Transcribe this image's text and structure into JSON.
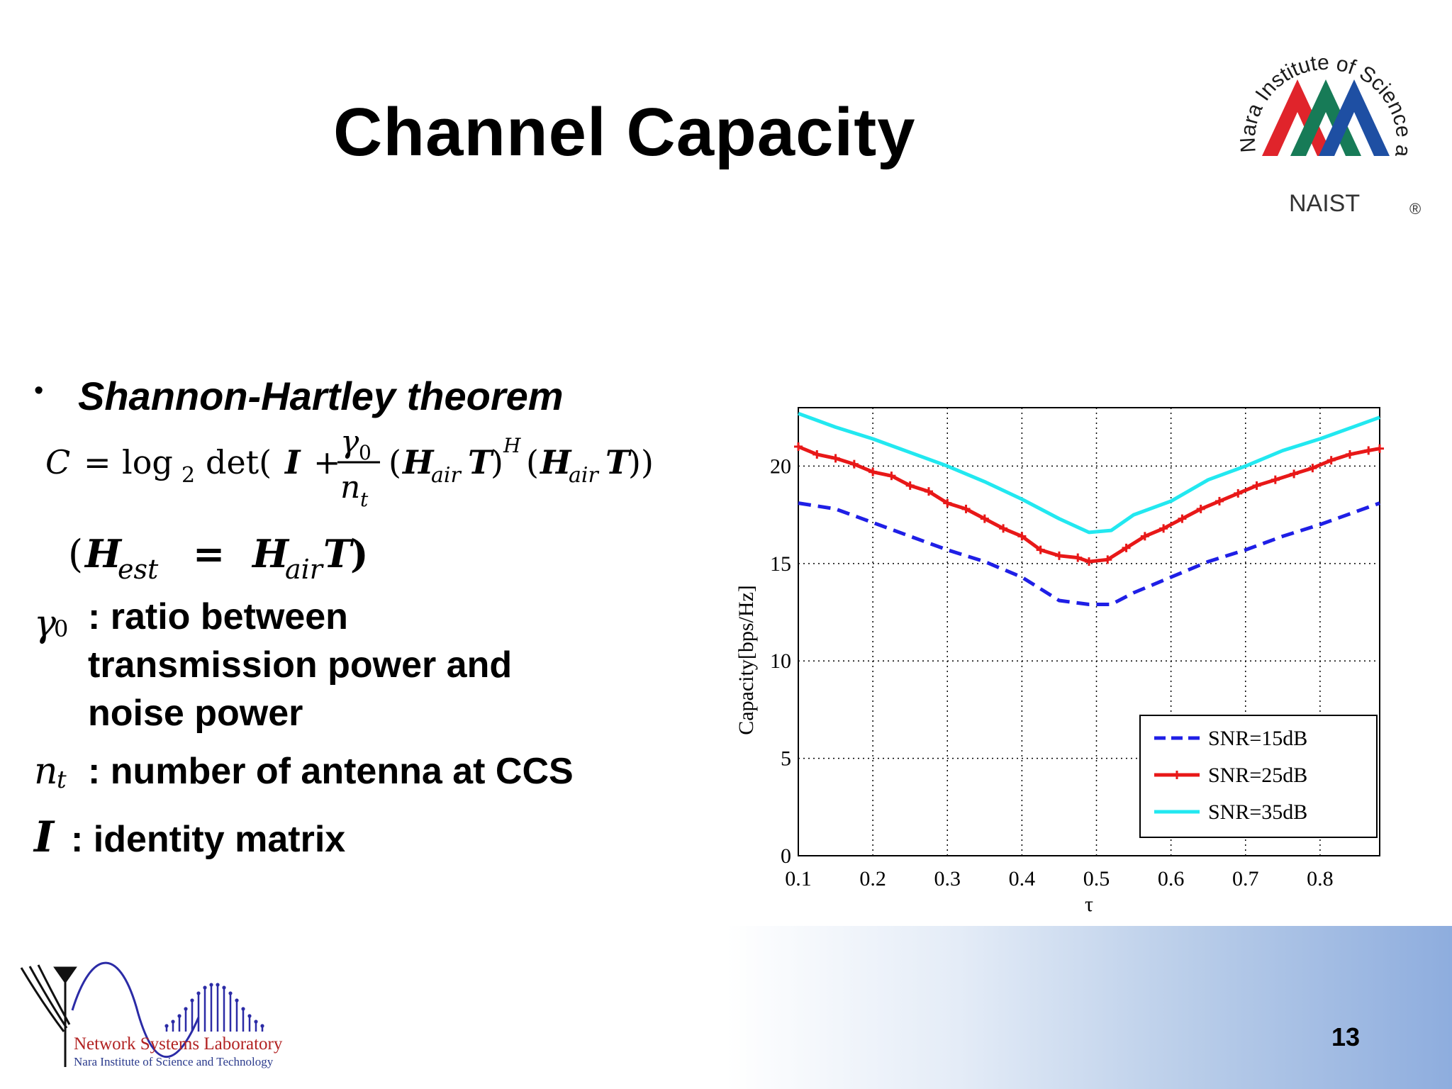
{
  "slide": {
    "title": "Channel Capacity",
    "page_number": "13",
    "bullet": "•",
    "theorem": "Shannon-Hartley theorem"
  },
  "formula": {
    "lhs": "C",
    "eq": "=",
    "log": "log",
    "log_base": "2",
    "det": "det(",
    "I": "I",
    "plus": "+",
    "gamma": "γ",
    "gamma_sub": "0",
    "n": "n",
    "n_sub": "t",
    "H": "H",
    "air": "air",
    "T": "T",
    "herm": "H",
    "close": "))",
    "est": "est",
    "open_paren": "(",
    "close_paren": ")"
  },
  "definitions": [
    {
      "symbol": "γ",
      "sub": "0",
      "text": ": ratio between",
      "lines": [
        "transmission power and",
        "noise power"
      ]
    },
    {
      "symbol": "n",
      "sub": "t",
      "text": ": number of antenna at CCS"
    },
    {
      "symbol": "I",
      "text": ": identity matrix"
    }
  ],
  "naist_logo": {
    "ring_text": "Nara Institute of Science and Technology",
    "wordmark": "NAIST",
    "registered": "®",
    "colors": [
      "#e0242b",
      "#177b57",
      "#1e4fa3"
    ]
  },
  "lab_logo": {
    "line1": "Network Systems Laboratory",
    "line2": "Nara Institute of Science and Technology",
    "text_color": "#b22222",
    "sub_color": "#2a3a8c",
    "wave_color": "#2b2ba6"
  },
  "chart_data": {
    "type": "line",
    "xlabel": "τ",
    "ylabel": "Capacity[bps/Hz]",
    "xlim": [
      0.1,
      0.88
    ],
    "ylim": [
      0,
      23
    ],
    "xticks": [
      "0.1",
      "0.2",
      "0.3",
      "0.4",
      "0.5",
      "0.6",
      "0.7",
      "0.8"
    ],
    "yticks": [
      "0",
      "5",
      "10",
      "15",
      "20"
    ],
    "grid": true,
    "legend_position": "bottom-right",
    "series": [
      {
        "name": "SNR=15dB",
        "color": "#1f1fe6",
        "style": "dashed",
        "markers": false,
        "x": [
          0.1,
          0.15,
          0.2,
          0.25,
          0.3,
          0.35,
          0.4,
          0.45,
          0.49,
          0.52,
          0.55,
          0.6,
          0.65,
          0.7,
          0.75,
          0.8,
          0.88
        ],
        "y": [
          18.1,
          17.8,
          17.1,
          16.4,
          15.7,
          15.1,
          14.3,
          13.1,
          12.9,
          12.9,
          13.5,
          14.3,
          15.1,
          15.7,
          16.4,
          17.0,
          18.1
        ]
      },
      {
        "name": "SNR=25dB",
        "color": "#e81818",
        "style": "solid",
        "markers": true,
        "x": [
          0.1,
          0.125,
          0.15,
          0.175,
          0.2,
          0.225,
          0.25,
          0.275,
          0.3,
          0.325,
          0.35,
          0.375,
          0.4,
          0.425,
          0.45,
          0.475,
          0.49,
          0.515,
          0.54,
          0.565,
          0.59,
          0.615,
          0.64,
          0.665,
          0.69,
          0.715,
          0.74,
          0.765,
          0.79,
          0.815,
          0.84,
          0.865,
          0.88
        ],
        "y": [
          21.0,
          20.6,
          20.4,
          20.1,
          19.7,
          19.5,
          19.0,
          18.7,
          18.1,
          17.8,
          17.3,
          16.8,
          16.4,
          15.7,
          15.4,
          15.3,
          15.1,
          15.2,
          15.8,
          16.4,
          16.8,
          17.3,
          17.8,
          18.2,
          18.6,
          19.0,
          19.3,
          19.6,
          19.9,
          20.3,
          20.6,
          20.8,
          20.9
        ]
      },
      {
        "name": "SNR=35dB",
        "color": "#22e8f0",
        "style": "solid",
        "markers": false,
        "x": [
          0.1,
          0.15,
          0.2,
          0.25,
          0.3,
          0.35,
          0.4,
          0.45,
          0.49,
          0.52,
          0.55,
          0.6,
          0.65,
          0.7,
          0.75,
          0.8,
          0.88
        ],
        "y": [
          22.7,
          22.0,
          21.4,
          20.7,
          20.0,
          19.2,
          18.3,
          17.3,
          16.6,
          16.7,
          17.5,
          18.2,
          19.3,
          20.0,
          20.8,
          21.4,
          22.5
        ]
      }
    ]
  }
}
